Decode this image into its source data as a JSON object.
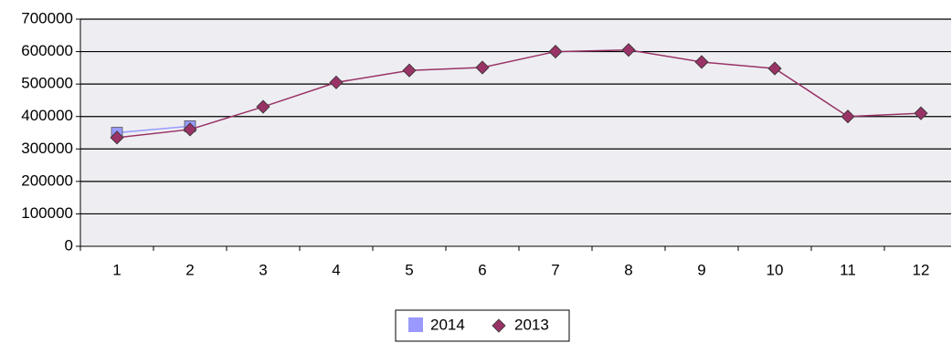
{
  "chart_data": {
    "type": "line",
    "categories": [
      "1",
      "2",
      "3",
      "4",
      "5",
      "6",
      "7",
      "8",
      "9",
      "10",
      "11",
      "12"
    ],
    "series": [
      {
        "name": "2014",
        "color": "#9999ff",
        "marker": "square",
        "values": [
          350000,
          370000,
          null,
          null,
          null,
          null,
          null,
          null,
          null,
          null,
          null,
          null
        ]
      },
      {
        "name": "2013",
        "color": "#993366",
        "marker": "diamond",
        "values": [
          335000,
          360000,
          430000,
          505000,
          542000,
          551000,
          600000,
          605000,
          568000,
          548000,
          400000,
          410000
        ]
      }
    ],
    "ylim": [
      0,
      700000
    ],
    "yticks": [
      0,
      100000,
      200000,
      300000,
      400000,
      500000,
      600000,
      700000
    ],
    "grid": true,
    "legend": "bottom"
  }
}
